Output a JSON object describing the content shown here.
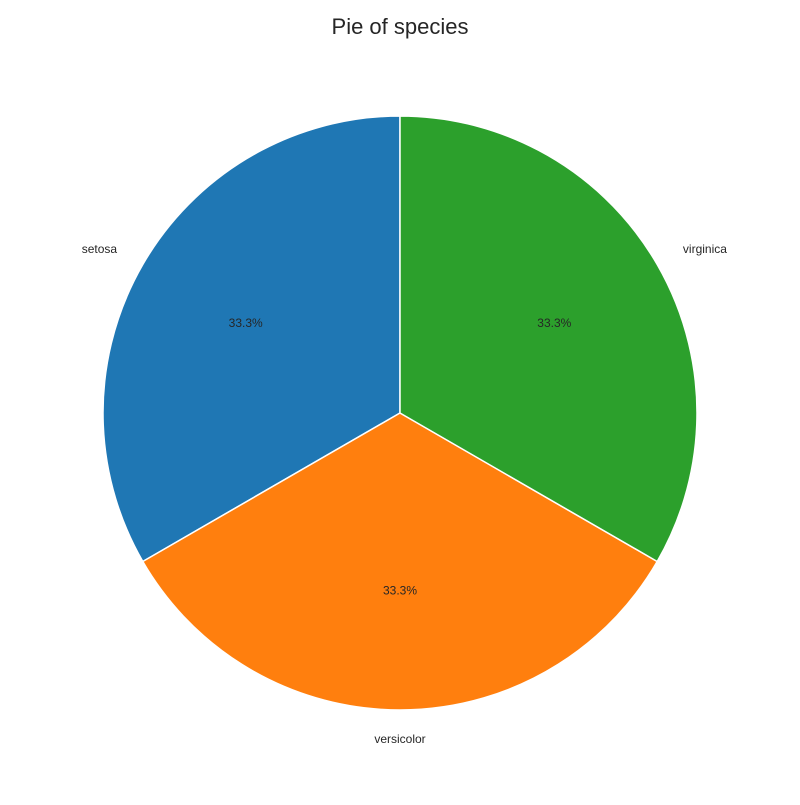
{
  "chart_data": {
    "type": "pie",
    "title": "Pie of species",
    "categories": [
      "setosa",
      "versicolor",
      "virginica"
    ],
    "values": [
      33.3,
      33.3,
      33.3
    ],
    "percent_labels": [
      "33.3%",
      "33.3%",
      "33.3%"
    ],
    "colors": [
      "#1f77b4",
      "#ff7f0e",
      "#2ca02c"
    ],
    "slice_edge_color": "#ffffff",
    "start_angle_deg": 90,
    "direction": "counterclockwise",
    "legend": "none"
  }
}
